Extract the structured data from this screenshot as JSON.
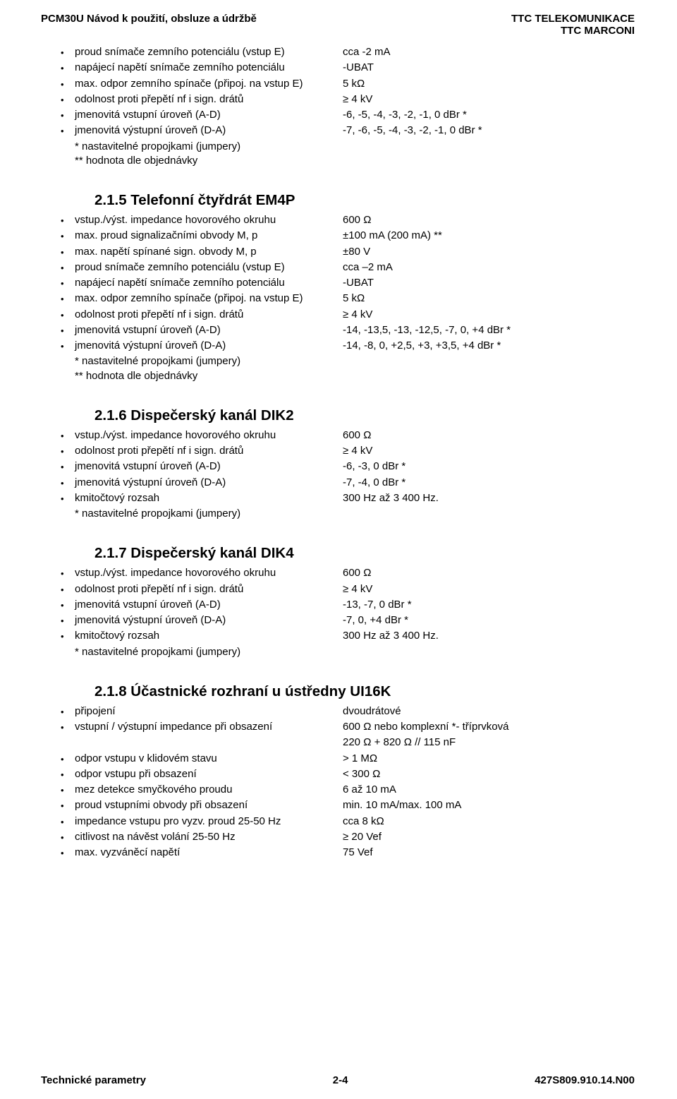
{
  "header": {
    "left": "PCM30U   Návod k použití, obsluze a údržbě",
    "right1": "TTC TELEKOMUNIKACE",
    "right2": "TTC MARCONI"
  },
  "footer": {
    "left": "Technické parametry",
    "center": "2-4",
    "right": "427S809.910.14.N00"
  },
  "sections": [
    {
      "title": null,
      "items": [
        {
          "label": "proud snímače zemního potenciálu (vstup E)",
          "value": "cca -2 mA"
        },
        {
          "label": "napájecí napětí snímače zemního potenciálu",
          "value": "-UBAT"
        },
        {
          "label": "max. odpor zemního spínače (připoj. na vstup E)",
          "value": "5 kΩ"
        },
        {
          "label": "odolnost proti přepětí nf i sign. drátů",
          "value": "≥ 4 kV"
        },
        {
          "label": "jmenovitá vstupní úroveň (A-D)",
          "value": "-6, -5, -4, -3, -2, -1, 0  dBr *"
        },
        {
          "label": "jmenovitá výstupní úroveň (D-A)",
          "value": "-7, -6, -5, -4, -3, -2, -1, 0 dBr *"
        }
      ],
      "notes": [
        "* nastavitelné propojkami (jumpery)",
        "** hodnota dle objednávky"
      ]
    },
    {
      "title": "2.1.5 Telefonní čtyřdrát EM4P",
      "items": [
        {
          "label": "vstup./výst. impedance hovorového okruhu",
          "value": "600 Ω"
        },
        {
          "label": "max. proud signalizačními obvody M, p",
          "value": "±100 mA (200 mA) **"
        },
        {
          "label": "max. napětí spínané sign. obvody M, p",
          "value": "±80 V"
        },
        {
          "label": "proud snímače zemního potenciálu (vstup E)",
          "value": "cca –2 mA"
        },
        {
          "label": "napájecí napětí snímače zemního potenciálu",
          "value": "-UBAT"
        },
        {
          "label": "max. odpor zemního spínače (připoj. na vstup E)",
          "value": "5 kΩ"
        },
        {
          "label": "odolnost proti přepětí nf i sign. drátů",
          "value": "≥ 4 kV"
        },
        {
          "label": "jmenovitá vstupní úroveň (A-D)",
          "value": "-14, -13,5, -13, -12,5, -7, 0, +4 dBr *"
        },
        {
          "label": "jmenovitá výstupní úroveň (D-A)",
          "value": "-14, -8,  0, +2,5, +3, +3,5, +4 dBr *"
        }
      ],
      "notes": [
        "* nastavitelné propojkami (jumpery)",
        "** hodnota dle objednávky"
      ]
    },
    {
      "title": "2.1.6 Dispečerský kanál DIK2",
      "items": [
        {
          "label": "vstup./výst. impedance hovorového okruhu",
          "value": "600 Ω"
        },
        {
          "label": "odolnost proti přepětí nf i sign. drátů",
          "value": "≥ 4 kV"
        },
        {
          "label": "jmenovitá vstupní úroveň (A-D)",
          "value": "-6, -3,  0  dBr *"
        },
        {
          "label": "jmenovitá výstupní úroveň (D-A)",
          "value": "-7,  -4,  0 dBr *"
        },
        {
          "label": "kmitočtový rozsah",
          "value": "300 Hz až 3 400 Hz."
        }
      ],
      "notes": [
        "*  nastavitelné propojkami (jumpery)"
      ]
    },
    {
      "title": "2.1.7 Dispečerský kanál DIK4",
      "items": [
        {
          "label": "vstup./výst. impedance hovorového okruhu",
          "value": "600 Ω"
        },
        {
          "label": "odolnost proti přepětí nf i sign. drátů",
          "value": "≥ 4 kV"
        },
        {
          "label": "jmenovitá vstupní úroveň (A-D)",
          "value": "-13, -7, 0  dBr *"
        },
        {
          "label": "jmenovitá výstupní úroveň (D-A)",
          "value": "-7,  0, +4 dBr *"
        },
        {
          "label": "kmitočtový rozsah",
          "value": "300 Hz až 3 400 Hz."
        }
      ],
      "notes": [
        "*  nastavitelné propojkami (jumpery)"
      ]
    },
    {
      "title": "2.1.8 Účastnické rozhraní u ústředny UI16K",
      "items": [
        {
          "label": "připojení",
          "value": "dvoudrátové"
        },
        {
          "label": "vstupní / výstupní impedance při obsazení",
          "value": "600 Ω nebo komplexní *- tříprvková"
        },
        {
          "label": "",
          "value": "220 Ω + 820 Ω // 115 nF",
          "nobullet": true
        },
        {
          "label": "odpor vstupu v klidovém stavu",
          "value": "> 1 MΩ"
        },
        {
          "label": "odpor vstupu při obsazení",
          "value": "< 300 Ω"
        },
        {
          "label": "mez detekce smyčkového proudu",
          "value": "6 až 10 mA"
        },
        {
          "label": "proud vstupními obvody při obsazení",
          "value": " min. 10 mA/max. 100 mA"
        },
        {
          "label": "impedance vstupu pro vyzv. proud 25-50 Hz",
          "value": "cca 8 kΩ"
        },
        {
          "label": "citlivost na návěst volání 25-50 Hz",
          "value": "≥ 20 Vef"
        },
        {
          "label": "max. vyzváněcí napětí",
          "value": "75 Vef"
        }
      ],
      "notes": []
    }
  ]
}
